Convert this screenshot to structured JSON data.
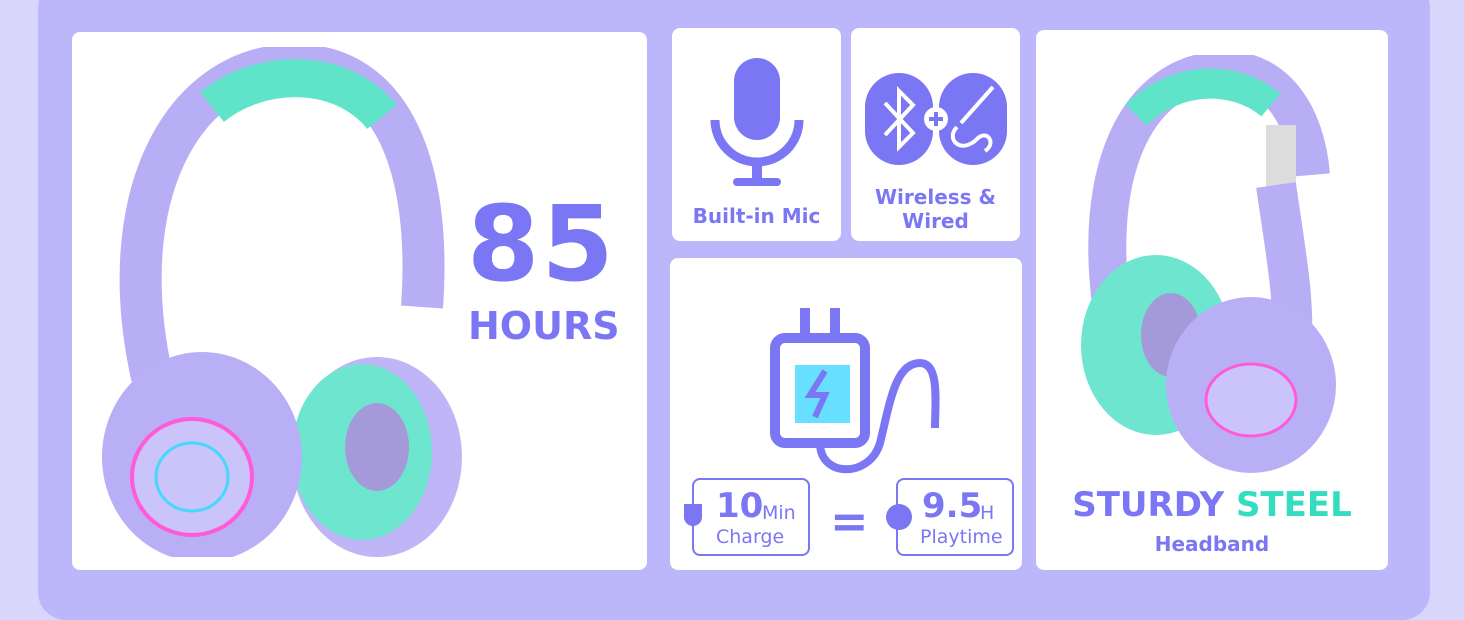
{
  "colors": {
    "accent": "#7a76f4",
    "teal": "#34dcc0",
    "frame": "#bbb7fa",
    "background": "#d9d6fc"
  },
  "battery": {
    "number": "85",
    "unit": "HOURS"
  },
  "mic": {
    "label": "Built-in Mic",
    "icon": "microphone-icon"
  },
  "connectivity": {
    "label_line1": "Wireless &",
    "label_line2": "Wired",
    "icons": [
      "bluetooth-icon",
      "plus-icon",
      "audio-jack-icon"
    ]
  },
  "charge": {
    "icon": "charger-icon",
    "left_number": "10",
    "left_unit": "Min",
    "left_label": "Charge",
    "equals": "=",
    "right_number": "9.5",
    "right_unit": "H",
    "right_label": "Playtime"
  },
  "headband": {
    "word1": "STURDY",
    "word2": "STEEL",
    "sub": "Headband"
  }
}
